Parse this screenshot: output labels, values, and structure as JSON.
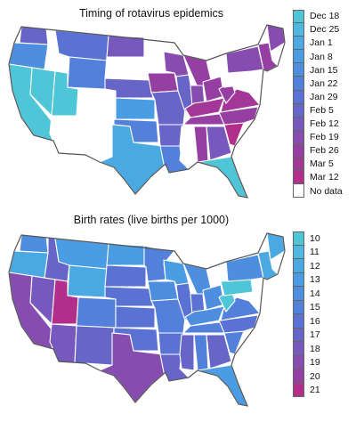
{
  "maps": [
    {
      "title": "Timing of rotavirus epidemics",
      "legend": [
        {
          "label": "Dec 18",
          "color": "#4fc6d8"
        },
        {
          "label": "Dec 25",
          "color": "#4db8e0"
        },
        {
          "label": "Jan 1",
          "color": "#4ba9e2"
        },
        {
          "label": "Jan 8",
          "color": "#4a9ce3"
        },
        {
          "label": "Jan 15",
          "color": "#4d8edf"
        },
        {
          "label": "Jan 22",
          "color": "#5380da"
        },
        {
          "label": "Jan 29",
          "color": "#5a72d3"
        },
        {
          "label": "Feb 5",
          "color": "#6865c9"
        },
        {
          "label": "Feb 12",
          "color": "#7758bd"
        },
        {
          "label": "Feb 19",
          "color": "#864caf"
        },
        {
          "label": "Feb 26",
          "color": "#953fa3"
        },
        {
          "label": "Mar 5",
          "color": "#a33797"
        },
        {
          "label": "Mar 12",
          "color": "#b12f8b"
        },
        {
          "label": "No data",
          "color": "#ffffff"
        }
      ],
      "regions": [
        {
          "name": "pacific-northwest",
          "color": "#6865c9"
        },
        {
          "name": "oregon",
          "color": "#4d8edf"
        },
        {
          "name": "california",
          "color": "#4fc6d8"
        },
        {
          "name": "nevada",
          "color": "#4fc6d8"
        },
        {
          "name": "utah",
          "color": "#4fc6d8"
        },
        {
          "name": "idaho",
          "color": "#ffffff"
        },
        {
          "name": "montana",
          "color": "#5a72d3"
        },
        {
          "name": "wyoming",
          "color": "#5380da"
        },
        {
          "name": "colorado",
          "color": "#ffffff"
        },
        {
          "name": "arizona",
          "color": "#ffffff"
        },
        {
          "name": "new-mexico",
          "color": "#ffffff"
        },
        {
          "name": "north-dakota",
          "color": "#7758bd"
        },
        {
          "name": "south-dakota",
          "color": "#ffffff"
        },
        {
          "name": "nebraska",
          "color": "#6865c9"
        },
        {
          "name": "kansas",
          "color": "#4a9ce3"
        },
        {
          "name": "oklahoma",
          "color": "#5380da"
        },
        {
          "name": "texas",
          "color": "#4ba9e2"
        },
        {
          "name": "minnesota",
          "color": "#ffffff"
        },
        {
          "name": "iowa",
          "color": "#953fa3"
        },
        {
          "name": "missouri",
          "color": "#6865c9"
        },
        {
          "name": "arkansas",
          "color": "#6865c9"
        },
        {
          "name": "louisiana",
          "color": "#5380da"
        },
        {
          "name": "wisconsin",
          "color": "#864caf"
        },
        {
          "name": "illinois",
          "color": "#6865c9"
        },
        {
          "name": "michigan",
          "color": "#953fa3"
        },
        {
          "name": "indiana",
          "color": "#864caf"
        },
        {
          "name": "ohio",
          "color": "#953fa3"
        },
        {
          "name": "kentucky",
          "color": "#a33797"
        },
        {
          "name": "tennessee",
          "color": "#953fa3"
        },
        {
          "name": "mississippi",
          "color": "#ffffff"
        },
        {
          "name": "alabama",
          "color": "#953fa3"
        },
        {
          "name": "georgia",
          "color": "#7758bd"
        },
        {
          "name": "florida",
          "color": "#4fc6d8"
        },
        {
          "name": "south-carolina",
          "color": "#b12f8b"
        },
        {
          "name": "north-carolina",
          "color": "#953fa3"
        },
        {
          "name": "virginia",
          "color": "#a33797"
        },
        {
          "name": "west-virginia",
          "color": "#953fa3"
        },
        {
          "name": "pennsylvania",
          "color": "#ffffff"
        },
        {
          "name": "new-york",
          "color": "#864caf"
        },
        {
          "name": "new-england",
          "color": "#953fa3"
        },
        {
          "name": "maine",
          "color": "#864caf"
        }
      ]
    },
    {
      "title": "Birth rates (live births per 1000)",
      "legend": [
        {
          "label": "10",
          "color": "#4fc6d8"
        },
        {
          "label": "11",
          "color": "#4db8e0"
        },
        {
          "label": "12",
          "color": "#4ba9e2"
        },
        {
          "label": "13",
          "color": "#4a9ce3"
        },
        {
          "label": "14",
          "color": "#4d8edf"
        },
        {
          "label": "15",
          "color": "#5380da"
        },
        {
          "label": "16",
          "color": "#5a72d3"
        },
        {
          "label": "17",
          "color": "#6865c9"
        },
        {
          "label": "18",
          "color": "#7758bd"
        },
        {
          "label": "19",
          "color": "#864caf"
        },
        {
          "label": "20",
          "color": "#953fa3"
        },
        {
          "label": "21",
          "color": "#b12f8b"
        }
      ],
      "regions": [
        {
          "name": "pacific-northwest",
          "color": "#4d8edf"
        },
        {
          "name": "oregon",
          "color": "#4ba9e2"
        },
        {
          "name": "california",
          "color": "#864caf"
        },
        {
          "name": "nevada",
          "color": "#7758bd"
        },
        {
          "name": "utah",
          "color": "#b12f8b"
        },
        {
          "name": "idaho",
          "color": "#6865c9"
        },
        {
          "name": "montana",
          "color": "#4a9ce3"
        },
        {
          "name": "wyoming",
          "color": "#4ba9e2"
        },
        {
          "name": "colorado",
          "color": "#5380da"
        },
        {
          "name": "arizona",
          "color": "#7758bd"
        },
        {
          "name": "new-mexico",
          "color": "#6865c9"
        },
        {
          "name": "north-dakota",
          "color": "#4a9ce3"
        },
        {
          "name": "south-dakota",
          "color": "#5a72d3"
        },
        {
          "name": "nebraska",
          "color": "#5a72d3"
        },
        {
          "name": "kansas",
          "color": "#5a72d3"
        },
        {
          "name": "oklahoma",
          "color": "#5a72d3"
        },
        {
          "name": "texas",
          "color": "#864caf"
        },
        {
          "name": "minnesota",
          "color": "#5380da"
        },
        {
          "name": "iowa",
          "color": "#4d8edf"
        },
        {
          "name": "missouri",
          "color": "#5380da"
        },
        {
          "name": "arkansas",
          "color": "#5a72d3"
        },
        {
          "name": "louisiana",
          "color": "#6865c9"
        },
        {
          "name": "wisconsin",
          "color": "#4a9ce3"
        },
        {
          "name": "illinois",
          "color": "#5a72d3"
        },
        {
          "name": "michigan",
          "color": "#4d8edf"
        },
        {
          "name": "indiana",
          "color": "#5a72d3"
        },
        {
          "name": "ohio",
          "color": "#4d8edf"
        },
        {
          "name": "kentucky",
          "color": "#4d8edf"
        },
        {
          "name": "tennessee",
          "color": "#5380da"
        },
        {
          "name": "mississippi",
          "color": "#6865c9"
        },
        {
          "name": "alabama",
          "color": "#5380da"
        },
        {
          "name": "georgia",
          "color": "#6865c9"
        },
        {
          "name": "florida",
          "color": "#4a9ce3"
        },
        {
          "name": "south-carolina",
          "color": "#5380da"
        },
        {
          "name": "north-carolina",
          "color": "#5a72d3"
        },
        {
          "name": "virginia",
          "color": "#5380da"
        },
        {
          "name": "west-virginia",
          "color": "#4fc6d8"
        },
        {
          "name": "pennsylvania",
          "color": "#4fc6d8"
        },
        {
          "name": "new-york",
          "color": "#4d8edf"
        },
        {
          "name": "new-england",
          "color": "#4ba9e2"
        },
        {
          "name": "maine",
          "color": "#4ba9e2"
        }
      ]
    }
  ]
}
